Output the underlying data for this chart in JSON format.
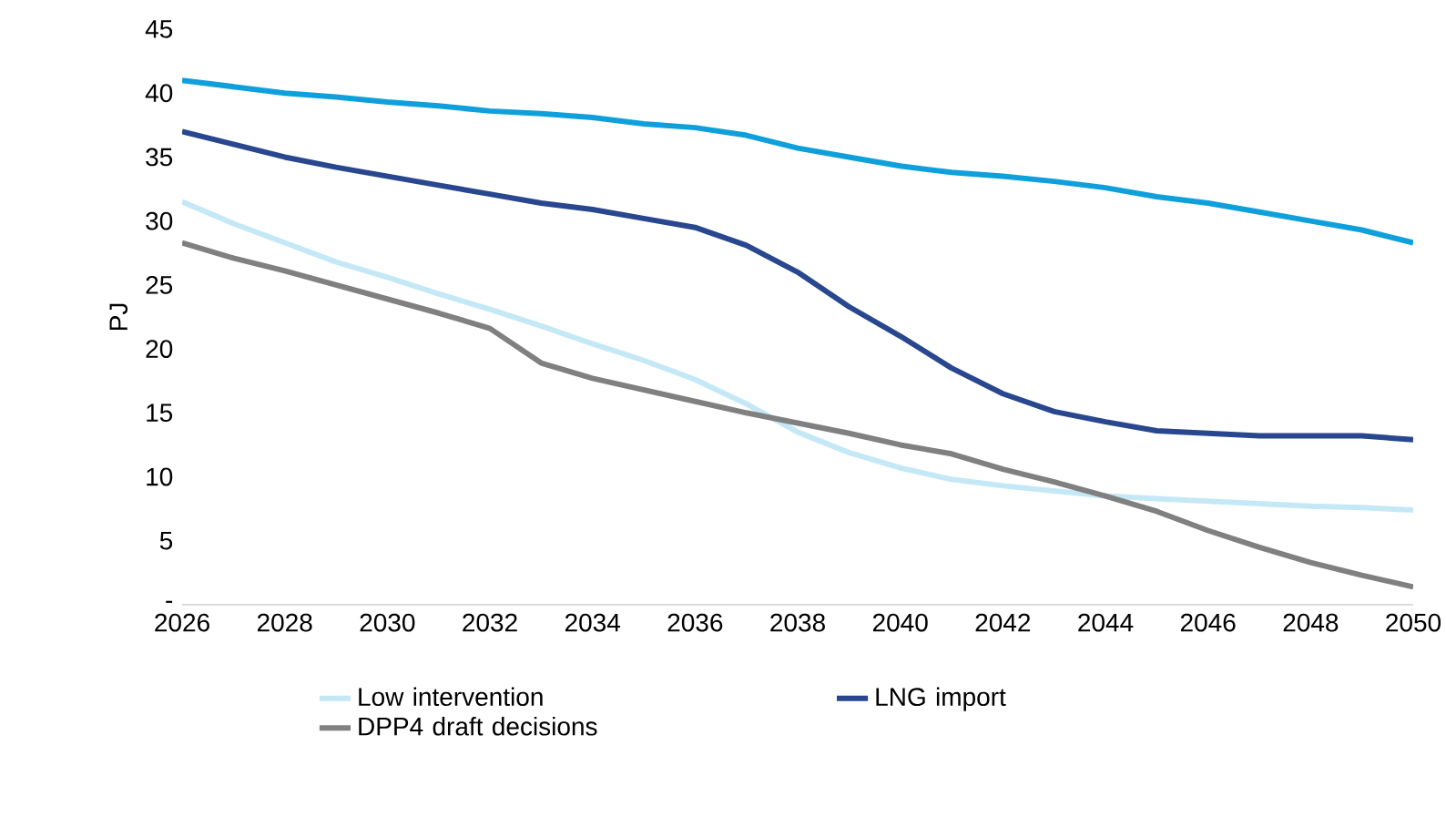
{
  "chart_data": {
    "type": "line",
    "ylabel": "PJ",
    "x": [
      2026,
      2027,
      2028,
      2029,
      2030,
      2031,
      2032,
      2033,
      2034,
      2035,
      2036,
      2037,
      2038,
      2039,
      2040,
      2041,
      2042,
      2043,
      2044,
      2045,
      2046,
      2047,
      2048,
      2049,
      2050
    ],
    "xlim": [
      2026,
      2050
    ],
    "xticks": [
      2026,
      2028,
      2030,
      2032,
      2034,
      2036,
      2038,
      2040,
      2042,
      2044,
      2046,
      2048,
      2050
    ],
    "ylim": [
      0,
      45
    ],
    "yticks": [
      {
        "value": 0,
        "label": "-"
      },
      5,
      10,
      15,
      20,
      25,
      30,
      35,
      40,
      45
    ],
    "legend": "bottom",
    "series": [
      {
        "name": "Low intervention",
        "color": "#c5e8f7",
        "values": [
          31.5,
          29.8,
          28.3,
          26.8,
          25.6,
          24.3,
          23.1,
          21.8,
          20.4,
          19.1,
          17.6,
          15.7,
          13.5,
          11.9,
          10.7,
          9.8,
          9.3,
          8.9,
          8.5,
          8.3,
          8.1,
          7.9,
          7.7,
          7.6,
          7.4
        ]
      },
      {
        "color": "#0fa0dc",
        "values": [
          41,
          40.5,
          40.0,
          39.7,
          39.3,
          39.0,
          38.6,
          38.4,
          38.1,
          37.6,
          37.3,
          36.7,
          35.7,
          35.0,
          34.3,
          33.8,
          33.5,
          33.1,
          32.6,
          31.9,
          31.4,
          30.7,
          30.0,
          29.3,
          28.3
        ]
      },
      {
        "name": "LNG import",
        "color": "#28478f",
        "values": [
          37,
          36,
          35,
          34.2,
          33.5,
          32.8,
          32.1,
          31.4,
          30.9,
          30.2,
          29.5,
          28.1,
          26.0,
          23.3,
          21.0,
          18.5,
          16.5,
          15.1,
          14.3,
          13.6,
          13.4,
          13.2,
          13.2,
          13.2,
          12.9
        ]
      },
      {
        "name": "DPP4 draft decisions",
        "color": "#808080",
        "values": [
          28.3,
          27.1,
          26.1,
          25.0,
          23.9,
          22.8,
          21.6,
          18.9,
          17.7,
          16.8,
          15.9,
          15.0,
          14.2,
          13.4,
          12.5,
          11.8,
          10.6,
          9.6,
          8.5,
          7.3,
          5.8,
          4.5,
          3.3,
          2.3,
          1.4
        ]
      }
    ]
  }
}
